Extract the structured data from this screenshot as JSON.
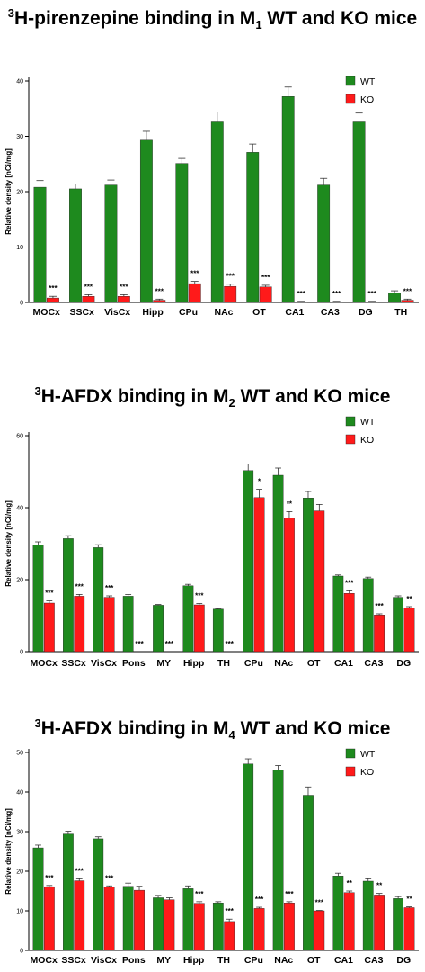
{
  "colors": {
    "wt": "#1e8a1e",
    "ko": "#ff1a1a",
    "axis": "#000000"
  },
  "chart_data": [
    {
      "type": "bar",
      "title": {
        "pre": "3",
        "main": "H-pirenzepine binding in M",
        "sub": "1",
        "post": " WT and KO mice"
      },
      "ylabel": "Relative density [nCi/mg]",
      "ylim": [
        0,
        40
      ],
      "yticks": [
        "0",
        "10",
        "20",
        "30",
        "40"
      ],
      "legend_position": "top-right",
      "categories": [
        "MOCx",
        "SSCx",
        "VisCx",
        "Hipp",
        "CPu",
        "NAc",
        "OT",
        "CA1",
        "CA3",
        "DG",
        "TH"
      ],
      "series": [
        {
          "name": "WT",
          "values": [
            20.8,
            20.5,
            21.2,
            29.3,
            25.1,
            32.6,
            27.1,
            37.2,
            21.2,
            32.6,
            1.7
          ],
          "errors": [
            1.2,
            0.9,
            0.9,
            1.6,
            0.9,
            1.8,
            1.5,
            1.7,
            1.2,
            1.6,
            0.4
          ]
        },
        {
          "name": "KO",
          "values": [
            0.8,
            1.1,
            1.1,
            0.4,
            3.4,
            2.9,
            2.8,
            0.1,
            0.1,
            0.1,
            0.4
          ],
          "errors": [
            0.3,
            0.3,
            0.3,
            0.2,
            0.4,
            0.4,
            0.3,
            0.1,
            0.1,
            0.1,
            0.2
          ],
          "significance": [
            "***",
            "***",
            "***",
            "***",
            "***",
            "***",
            "***",
            "***",
            "***",
            "***",
            "***"
          ]
        }
      ]
    },
    {
      "type": "bar",
      "title": {
        "pre": "3",
        "main": "H-AFDX binding in M",
        "sub": "2",
        "post": " WT and KO mice"
      },
      "ylabel": "Relative density [nCi/mg]",
      "ylim": [
        0,
        60
      ],
      "yticks": [
        "0",
        "20",
        "40",
        "60"
      ],
      "legend_position": "top-right",
      "categories": [
        "MOCx",
        "SSCx",
        "VisCx",
        "Pons",
        "MY",
        "Hipp",
        "TH",
        "CPu",
        "NAc",
        "OT",
        "CA1",
        "CA3",
        "DG"
      ],
      "series": [
        {
          "name": "WT",
          "values": [
            29.6,
            31.4,
            28.9,
            15.4,
            12.9,
            18.3,
            11.8,
            50.3,
            49.0,
            42.7,
            21.0,
            20.3,
            15.1
          ],
          "errors": [
            0.9,
            0.8,
            0.8,
            0.5,
            0.2,
            0.4,
            0.2,
            1.8,
            2.0,
            1.8,
            0.3,
            0.4,
            0.4
          ]
        },
        {
          "name": "KO",
          "values": [
            13.5,
            15.4,
            15.1,
            0,
            0,
            13.0,
            0,
            42.8,
            37.2,
            39.1,
            16.2,
            10.2,
            12.1
          ],
          "errors": [
            0.6,
            0.5,
            0.4,
            0,
            0,
            0.4,
            0,
            2.3,
            1.7,
            1.8,
            0.7,
            0.3,
            0.4
          ],
          "significance": [
            "***",
            "***",
            "***",
            "***",
            "***",
            "***",
            "***",
            "*",
            "**",
            "",
            "***",
            "***",
            "**"
          ]
        }
      ]
    },
    {
      "type": "bar",
      "title": {
        "pre": "3",
        "main": "H-AFDX binding in M",
        "sub": "4",
        "post": " WT and KO mice"
      },
      "ylabel": "Relative density [nCi/mg]",
      "ylim": [
        0,
        50
      ],
      "yticks": [
        "0",
        "10",
        "20",
        "30",
        "40",
        "50"
      ],
      "legend_position": "top-right",
      "categories": [
        "MOCx",
        "SSCx",
        "VisCx",
        "Pons",
        "MY",
        "Hipp",
        "TH",
        "CPu",
        "NAc",
        "OT",
        "CA1",
        "CA3",
        "DG"
      ],
      "series": [
        {
          "name": "WT",
          "values": [
            25.9,
            29.4,
            28.2,
            16.2,
            13.3,
            15.6,
            12.0,
            47.1,
            45.6,
            39.2,
            18.8,
            17.5,
            13.1
          ],
          "errors": [
            0.7,
            0.7,
            0.5,
            0.8,
            0.6,
            0.7,
            0.3,
            1.3,
            1.1,
            2.1,
            0.7,
            0.6,
            0.5
          ]
        },
        {
          "name": "KO",
          "values": [
            16.1,
            17.6,
            16.0,
            15.2,
            12.8,
            11.9,
            7.3,
            10.6,
            12.0,
            10.0,
            14.6,
            14.0,
            10.8
          ],
          "errors": [
            0.3,
            0.5,
            0.3,
            1.0,
            0.5,
            0.4,
            0.6,
            0.3,
            0.3,
            0.1,
            0.4,
            0.4,
            0.2
          ],
          "significance": [
            "***",
            "***",
            "***",
            "",
            "",
            "***",
            "***",
            "***",
            "***",
            "***",
            "**",
            "**",
            "**"
          ]
        }
      ]
    }
  ]
}
